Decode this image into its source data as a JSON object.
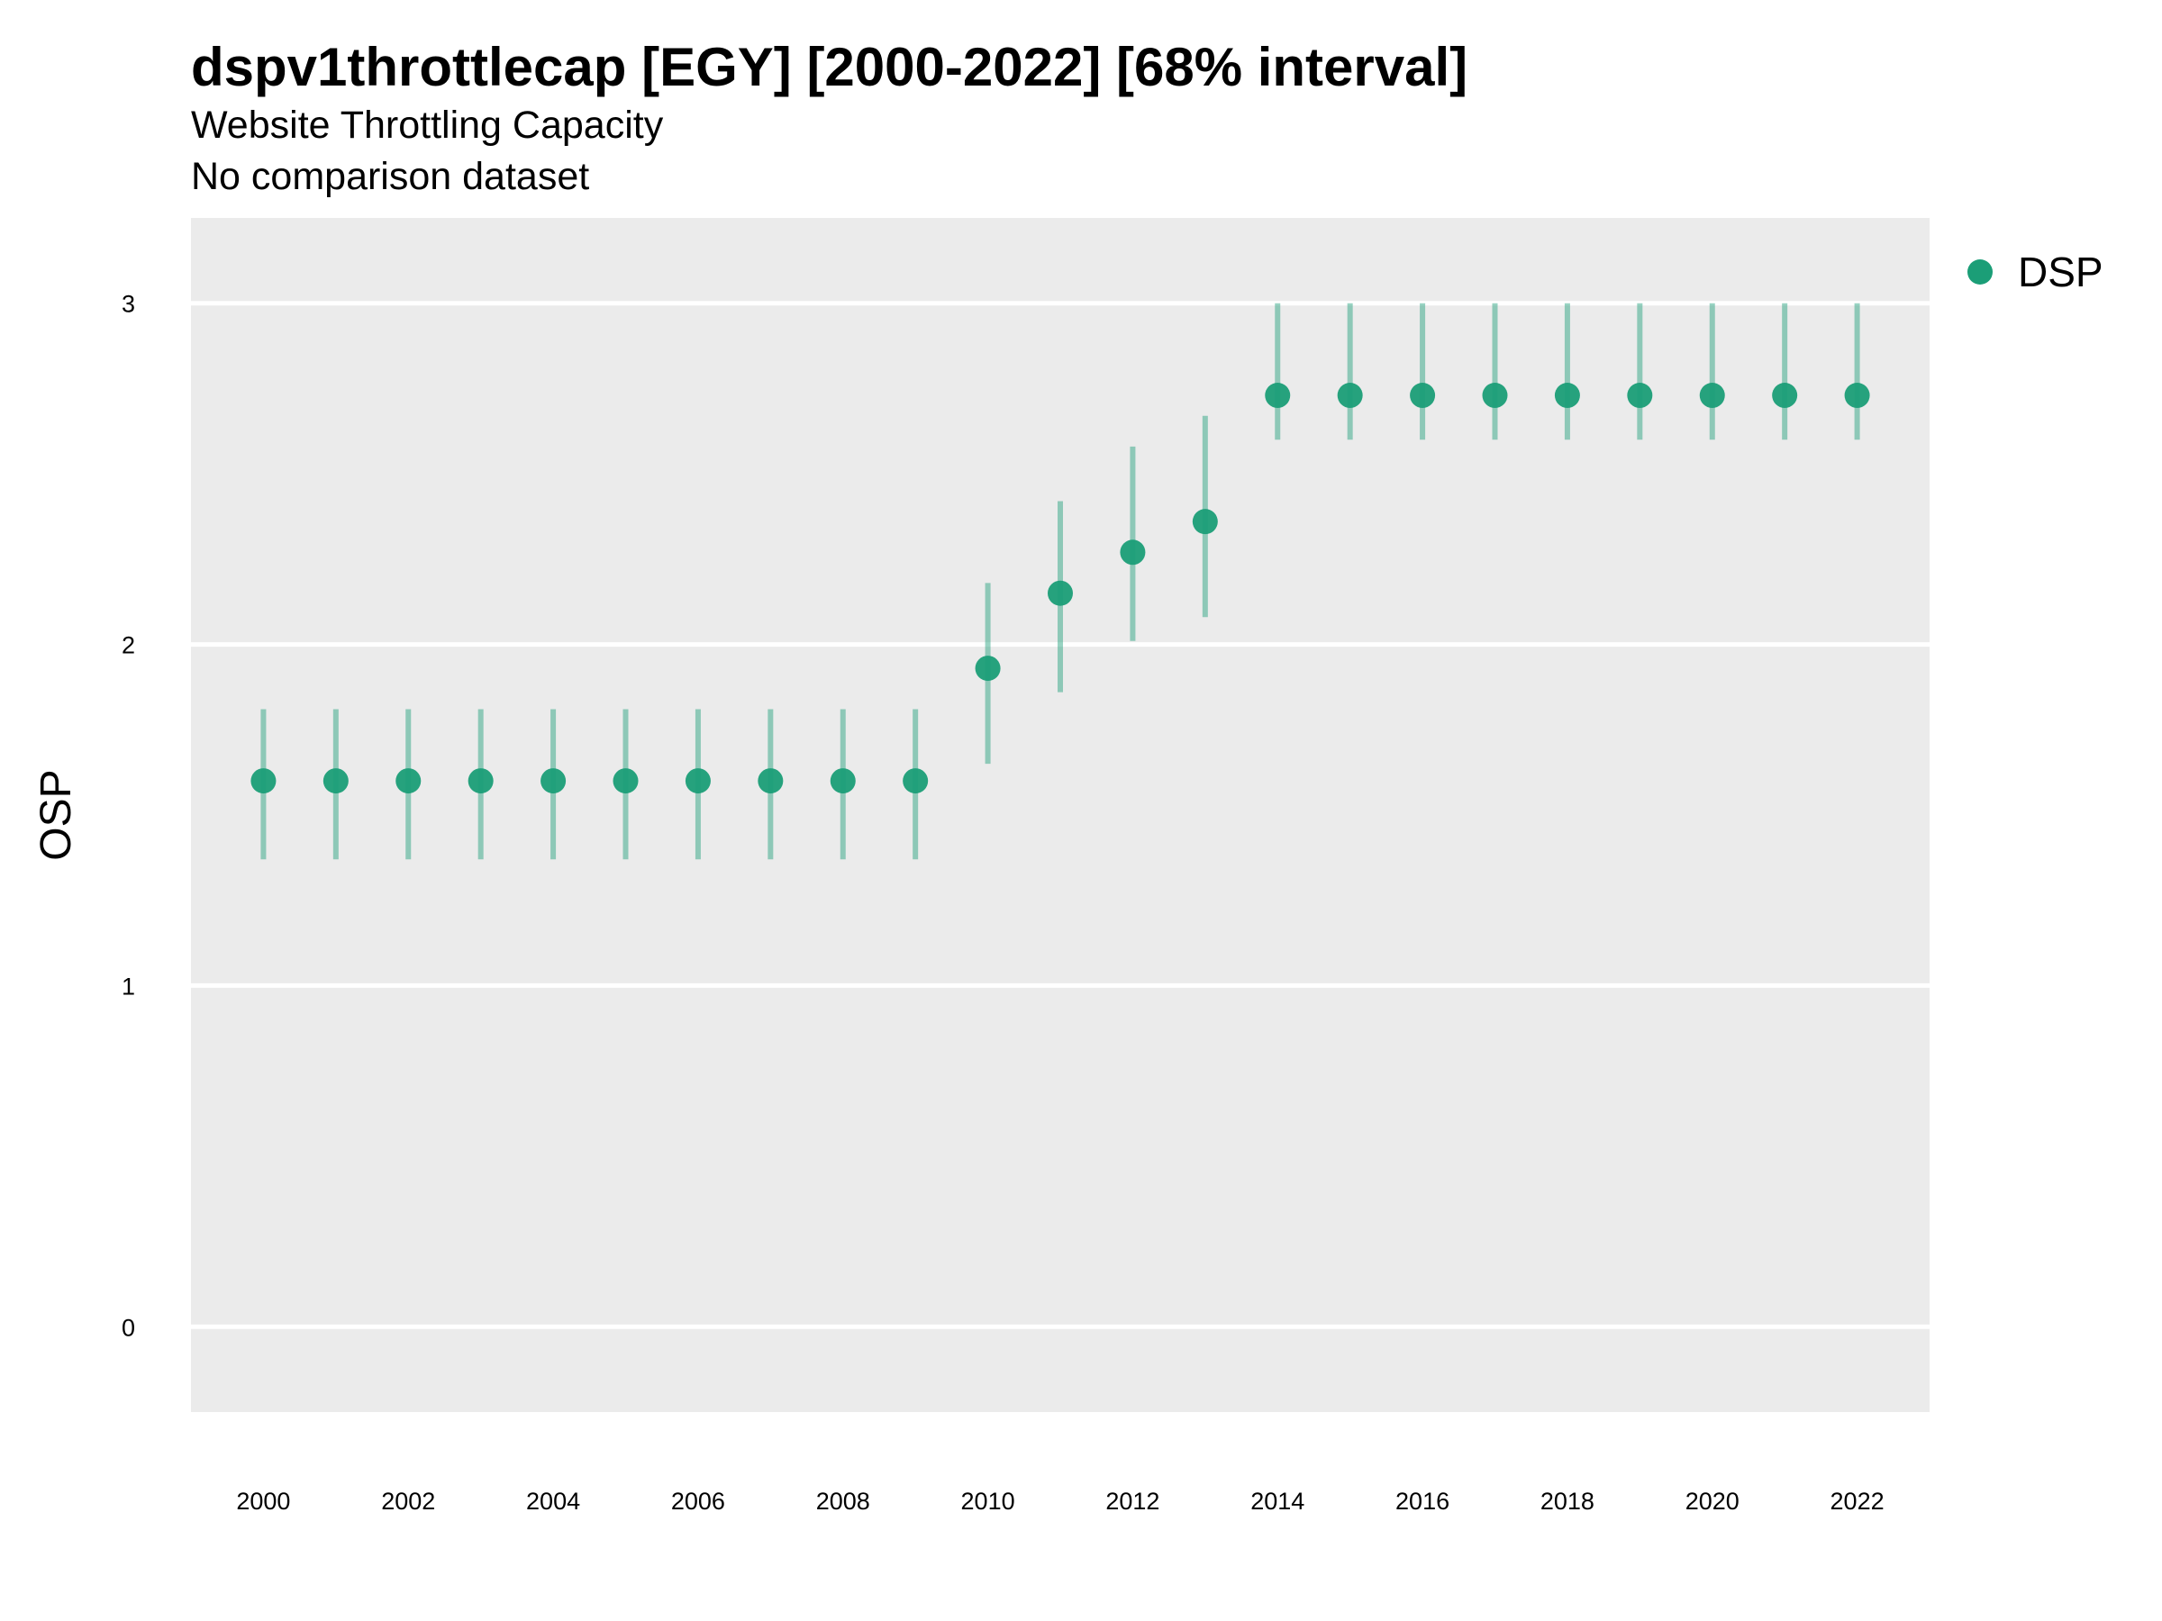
{
  "chart_data": {
    "type": "scatter",
    "title": "dspv1throttlecap [EGY] [2000-2022] [68% interval]",
    "subtitle": "Website Throttling Capacity",
    "subtitle2": "No comparison dataset",
    "xlabel": "",
    "ylabel": "OSP",
    "xlim": [
      1999,
      2023
    ],
    "ylim": [
      -0.25,
      3.25
    ],
    "grid": true,
    "legend_position": "right",
    "x_ticks": [
      2000,
      2002,
      2004,
      2006,
      2008,
      2010,
      2012,
      2014,
      2016,
      2018,
      2020,
      2022
    ],
    "y_ticks": [
      0,
      1,
      2,
      3
    ],
    "colors": {
      "panel": "#ebebeb",
      "grid": "#ffffff",
      "point": "#1b9e77"
    },
    "series": [
      {
        "name": "DSP",
        "x": [
          2000,
          2001,
          2002,
          2003,
          2004,
          2005,
          2006,
          2007,
          2008,
          2009,
          2010,
          2011,
          2012,
          2013,
          2014,
          2015,
          2016,
          2017,
          2018,
          2019,
          2020,
          2021,
          2022
        ],
        "y": [
          1.6,
          1.6,
          1.6,
          1.6,
          1.6,
          1.6,
          1.6,
          1.6,
          1.6,
          1.6,
          1.93,
          2.15,
          2.27,
          2.36,
          2.73,
          2.73,
          2.73,
          2.73,
          2.73,
          2.73,
          2.73,
          2.73,
          2.73
        ],
        "lower": [
          1.37,
          1.37,
          1.37,
          1.37,
          1.37,
          1.37,
          1.37,
          1.37,
          1.37,
          1.37,
          1.65,
          1.86,
          2.01,
          2.08,
          2.6,
          2.6,
          2.6,
          2.6,
          2.6,
          2.6,
          2.6,
          2.6,
          2.6
        ],
        "upper": [
          1.81,
          1.81,
          1.81,
          1.81,
          1.81,
          1.81,
          1.81,
          1.81,
          1.81,
          1.81,
          2.18,
          2.42,
          2.58,
          2.67,
          3.0,
          3.0,
          3.0,
          3.0,
          3.0,
          3.0,
          3.0,
          3.0,
          3.0
        ]
      }
    ]
  }
}
